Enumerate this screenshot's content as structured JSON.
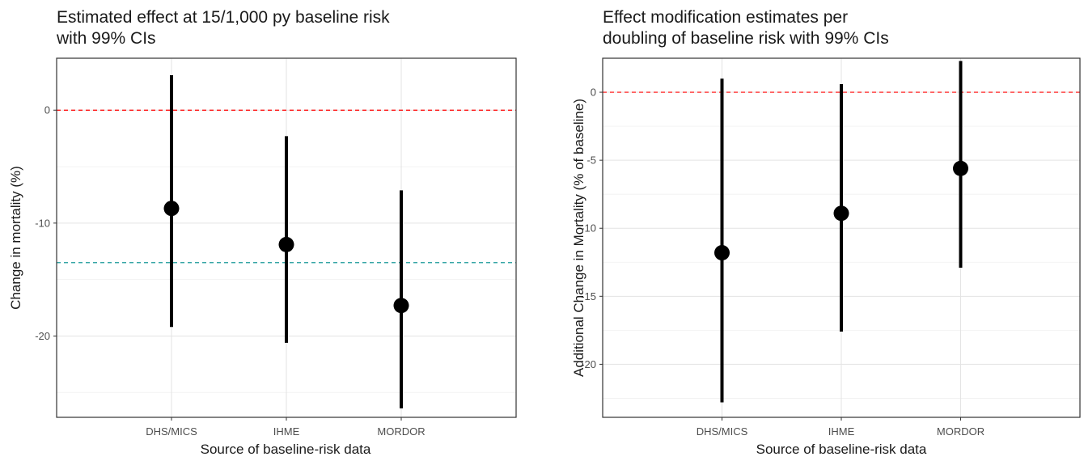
{
  "chart_data": [
    {
      "type": "errorbar",
      "title_lines": [
        "Estimated effect at 15/1,000 py baseline risk",
        "with 99% CIs"
      ],
      "xlabel": "Source of baseline-risk data",
      "ylabel": "Change in mortality (%)",
      "categories": [
        "DHS/MICS",
        "IHME",
        "MORDOR"
      ],
      "estimates": [
        -8.7,
        -11.9,
        -17.3
      ],
      "lower": [
        -19.2,
        -20.6,
        -26.4
      ],
      "upper": [
        3.1,
        -2.3,
        -7.1
      ],
      "ylim": [
        -27.2,
        4.6
      ],
      "yticks": [
        0,
        -10,
        -20
      ],
      "reference_lines": [
        {
          "y": 0,
          "color": "#ff0000",
          "style": "dashed"
        },
        {
          "y": -13.5,
          "color": "#1a9a9a",
          "style": "dashed"
        }
      ],
      "grid": true
    },
    {
      "type": "errorbar",
      "title_lines": [
        "Effect modification estimates per",
        "doubling of baseline risk with 99% CIs"
      ],
      "xlabel": "Source of baseline-risk data",
      "ylabel": "Additional Change in Mortality (% of baseline)",
      "categories": [
        "DHS/MICS",
        "IHME",
        "MORDOR"
      ],
      "estimates": [
        -11.8,
        -8.9,
        -5.6
      ],
      "lower": [
        -22.8,
        -17.6,
        -12.9
      ],
      "upper": [
        1.0,
        0.6,
        2.3
      ],
      "ylim": [
        -23.9,
        2.5
      ],
      "yticks": [
        0,
        -5,
        -10,
        -15,
        -20
      ],
      "reference_lines": [
        {
          "y": 0,
          "color": "#ff0000",
          "style": "dashed"
        }
      ],
      "grid": true
    }
  ]
}
